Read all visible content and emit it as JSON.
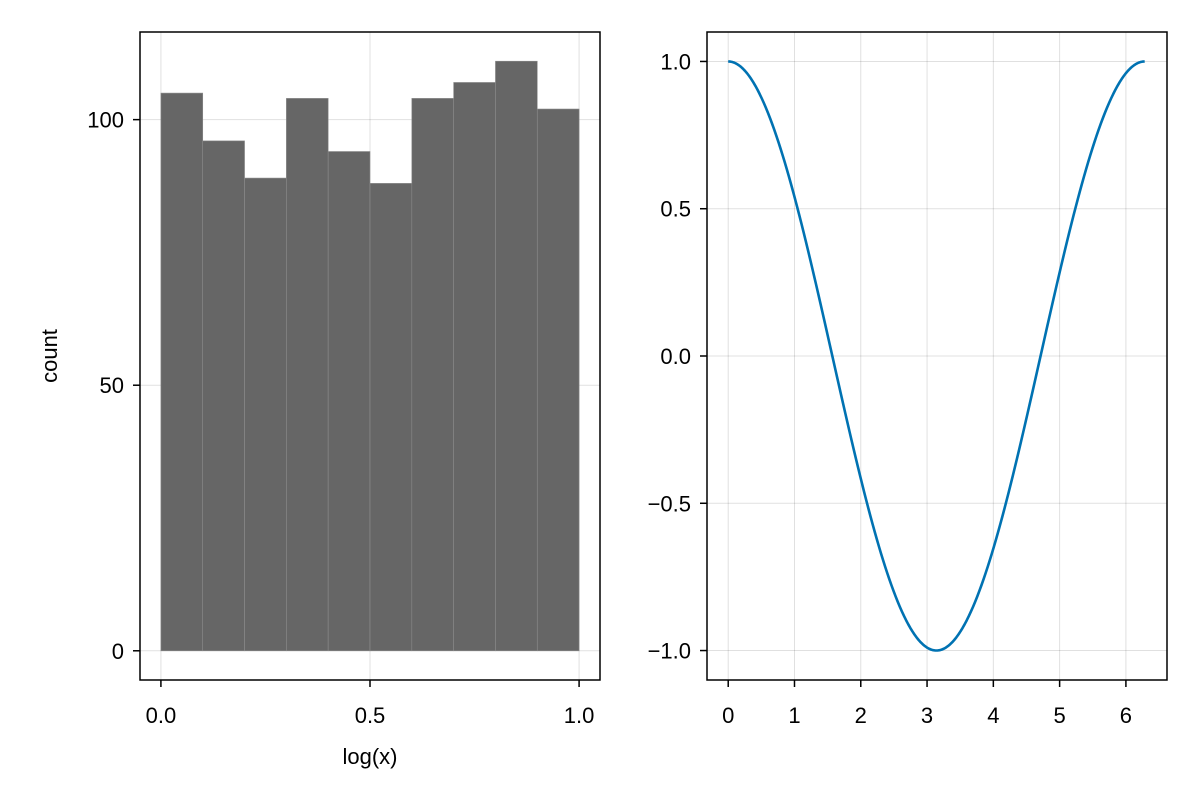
{
  "chart_data": [
    {
      "type": "bar",
      "xlabel": "log(x)",
      "ylabel": "count",
      "bin_edges": [
        0.0,
        0.1,
        0.2,
        0.3,
        0.4,
        0.5,
        0.6,
        0.7,
        0.8,
        0.9,
        1.0
      ],
      "values": [
        105,
        96,
        89,
        104,
        94,
        88,
        104,
        107,
        111,
        102
      ],
      "xlim": [
        -0.05,
        1.05
      ],
      "ylim": [
        -5.5,
        116.5
      ],
      "xticks": [
        0.0,
        0.5,
        1.0
      ],
      "xtick_labels": [
        "0.0",
        "0.5",
        "1.0"
      ],
      "yticks": [
        0,
        50,
        100
      ],
      "ytick_labels": [
        "0",
        "50",
        "100"
      ],
      "bar_color": "#666666",
      "grid": true
    },
    {
      "type": "line",
      "function": "cos(x)",
      "x_range": [
        0,
        6.283185
      ],
      "n_points": 200,
      "xlim": [
        -0.32,
        6.62
      ],
      "ylim": [
        -1.1,
        1.1
      ],
      "xticks": [
        0,
        1,
        2,
        3,
        4,
        5,
        6
      ],
      "xtick_labels": [
        "0",
        "1",
        "2",
        "3",
        "4",
        "5",
        "6"
      ],
      "yticks": [
        -1.0,
        -0.5,
        0.0,
        0.5,
        1.0
      ],
      "ytick_labels": [
        "−1.0",
        "−0.5",
        "0.0",
        "0.5",
        "1.0"
      ],
      "line_color": "#0072b2",
      "grid": true
    }
  ]
}
